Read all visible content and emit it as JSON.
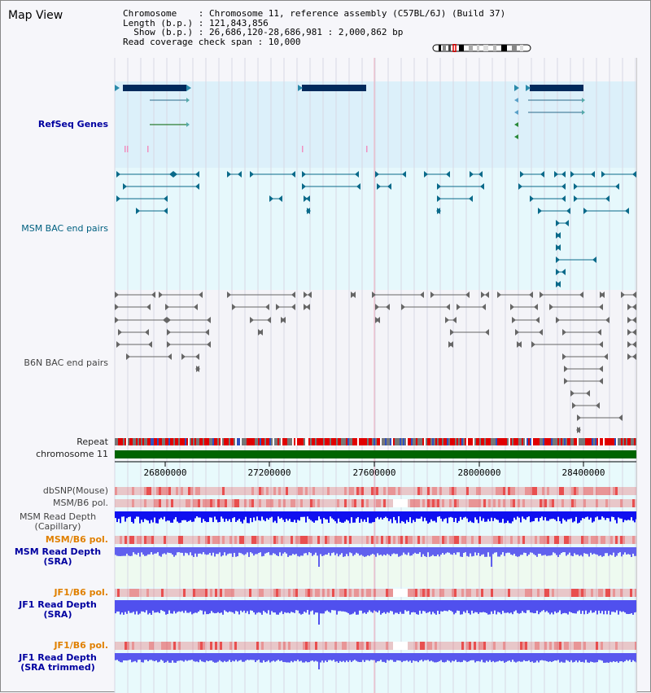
{
  "title": "Map View",
  "info": {
    "line1": "Chromosome    : Chromosome 11, reference assembly (C57BL/6J) (Build 37)",
    "line2": "Length (b.p.) : 121,843,856",
    "line3": "  Show (b.p.) : 26,686,120-28,686,981 : 2,000,862 bp",
    "line4": "Read coverage check span : 10,000"
  },
  "tracks": {
    "refseq": "RefSeq Genes",
    "msm_bac": "MSM BAC end pairs",
    "b6n_bac": "B6N BAC end pairs",
    "repeat": "Repeat",
    "chromosome": "chromosome 11",
    "dbsnp": "dbSNP(Mouse)",
    "msm_b6_pol": "MSM/B6 pol.",
    "msm_depth_cap_1": "MSM Read Depth",
    "msm_depth_cap_2": "(Capillary)",
    "msm_b6_pol2": "MSM/B6 pol.",
    "msm_depth_sra_1": "MSM Read Depth",
    "msm_depth_sra_2": "(SRA)",
    "jf1_b6_pol": "JF1/B6 pol.",
    "jf1_depth_sra_1": "JF1 Read Depth",
    "jf1_depth_sra_2": "(SRA)",
    "jf1_b6_pol2": "JF1/B6 pol.",
    "jf1_depth_trim_1": "JF1 Read Depth",
    "jf1_depth_trim_2": "(SRA trimmed)"
  },
  "axis": {
    "ticks": [
      "26800000",
      "27200000",
      "27600000",
      "28000000",
      "28400000"
    ]
  },
  "colors": {
    "refseq_bg": "#dcf0fa",
    "bac_bg": "#e6f8fc",
    "gene": "#002a5c",
    "chromosome": "#006400",
    "snp": "#e83030",
    "depth": "#2020e0"
  }
}
